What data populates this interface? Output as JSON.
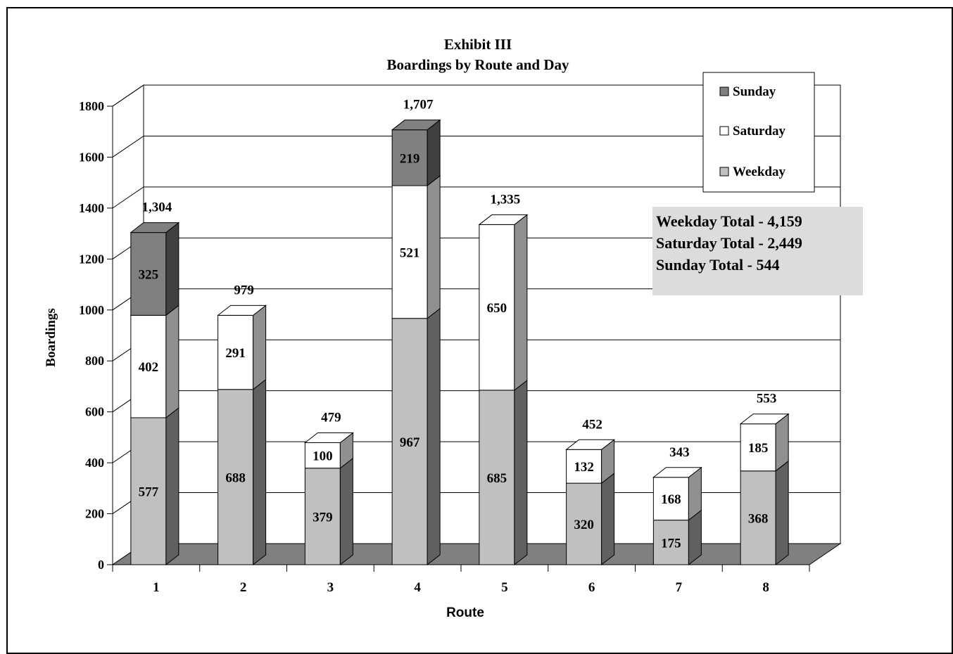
{
  "chart_data": {
    "type": "bar",
    "stacked": true,
    "style": "3d",
    "title": "Exhibit III",
    "subtitle": "Boardings by Route and Day",
    "xlabel": "Route",
    "ylabel": "Boardings",
    "categories": [
      "1",
      "2",
      "3",
      "4",
      "5",
      "6",
      "7",
      "8"
    ],
    "series": [
      {
        "name": "Weekday",
        "values": [
          577,
          688,
          379,
          967,
          685,
          320,
          175,
          368
        ],
        "color": "#c0c0c0"
      },
      {
        "name": "Saturday",
        "values": [
          402,
          291,
          100,
          521,
          650,
          132,
          168,
          185
        ],
        "color": "#ffffff"
      },
      {
        "name": "Sunday",
        "values": [
          325,
          null,
          null,
          219,
          null,
          null,
          null,
          null
        ],
        "color": "#808080"
      }
    ],
    "totals": [
      "1,304",
      "979",
      "479",
      "1,707",
      "1,335",
      "452",
      "343",
      "553"
    ],
    "ylim": [
      0,
      1800
    ],
    "yticks": [
      0,
      200,
      400,
      600,
      800,
      1000,
      1200,
      1400,
      1600,
      1800
    ],
    "grid": true,
    "legend": {
      "position": "top-right",
      "order": [
        "Sunday",
        "Saturday",
        "Weekday"
      ]
    },
    "annotation": [
      "Weekday Total - 4,159",
      "Saturday Total - 2,449",
      "Sunday Total - 544"
    ],
    "colors": {
      "floor": "#808080",
      "annotation_bg": "#dcdcdc"
    }
  }
}
